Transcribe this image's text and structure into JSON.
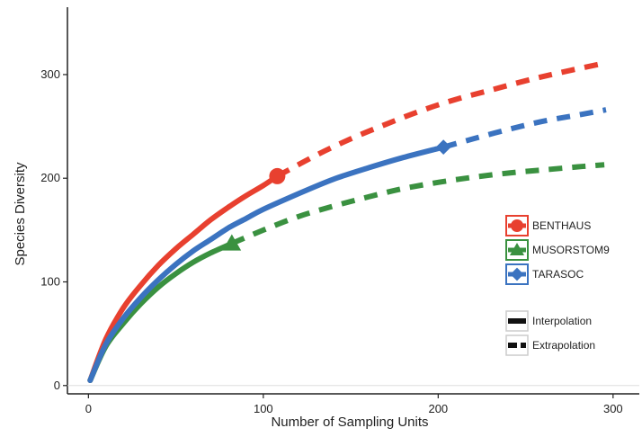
{
  "chart_data": {
    "type": "line",
    "xlabel": "Number of Sampling Units",
    "ylabel": "Species Diversity",
    "xlim": [
      -12,
      315
    ],
    "ylim": [
      -8,
      365
    ],
    "xticks": [
      "0",
      "100",
      "200",
      "300"
    ],
    "xtick_values": [
      0,
      100,
      200,
      300
    ],
    "yticks": [
      "0",
      "100",
      "200",
      "300"
    ],
    "ytick_values": [
      0,
      100,
      200,
      300
    ],
    "grid": false,
    "legend_placement": "right",
    "series": [
      {
        "name": "BENTHAUS",
        "color": "#e8402f",
        "marker": "circle",
        "interpolation": {
          "x": [
            1,
            10,
            20,
            30,
            40,
            50,
            60,
            70,
            80,
            90,
            100,
            108
          ],
          "y": [
            5,
            45,
            75,
            97,
            116,
            132,
            146,
            160,
            172,
            183,
            193,
            202
          ]
        },
        "extrapolation": {
          "x": [
            108,
            130,
            150,
            170,
            190,
            210,
            230,
            250,
            270,
            295
          ],
          "y": [
            202,
            222,
            238,
            252,
            265,
            276,
            285,
            294,
            302,
            311
          ]
        },
        "observed_point": {
          "x": 108,
          "y": 202
        }
      },
      {
        "name": "MUSORSTOM9",
        "color": "#3a9140",
        "marker": "triangle",
        "interpolation": {
          "x": [
            1,
            10,
            20,
            30,
            40,
            50,
            60,
            70,
            82
          ],
          "y": [
            5,
            38,
            60,
            79,
            95,
            108,
            119,
            128,
            137
          ]
        },
        "extrapolation": {
          "x": [
            82,
            100,
            120,
            140,
            160,
            180,
            200,
            220,
            240,
            260,
            280,
            295
          ],
          "y": [
            137,
            150,
            163,
            173,
            182,
            190,
            196,
            201,
            205,
            208,
            211,
            213
          ]
        },
        "observed_point": {
          "x": 82,
          "y": 137
        }
      },
      {
        "name": "TARASOC",
        "color": "#3b73c0",
        "marker": "diamond",
        "interpolation": {
          "x": [
            1,
            10,
            20,
            30,
            40,
            50,
            60,
            70,
            80,
            90,
            100,
            120,
            140,
            160,
            180,
            203
          ],
          "y": [
            5,
            40,
            65,
            85,
            102,
            117,
            130,
            141,
            152,
            161,
            170,
            185,
            199,
            210,
            220,
            230
          ]
        },
        "extrapolation": {
          "x": [
            203,
            220,
            240,
            260,
            280,
            296
          ],
          "y": [
            230,
            238,
            247,
            255,
            261,
            266
          ]
        },
        "observed_point": {
          "x": 203,
          "y": 230
        }
      }
    ],
    "line_style_legend": [
      {
        "label": "Interpolation",
        "style": "solid"
      },
      {
        "label": "Extrapolation",
        "style": "dashed"
      }
    ]
  }
}
